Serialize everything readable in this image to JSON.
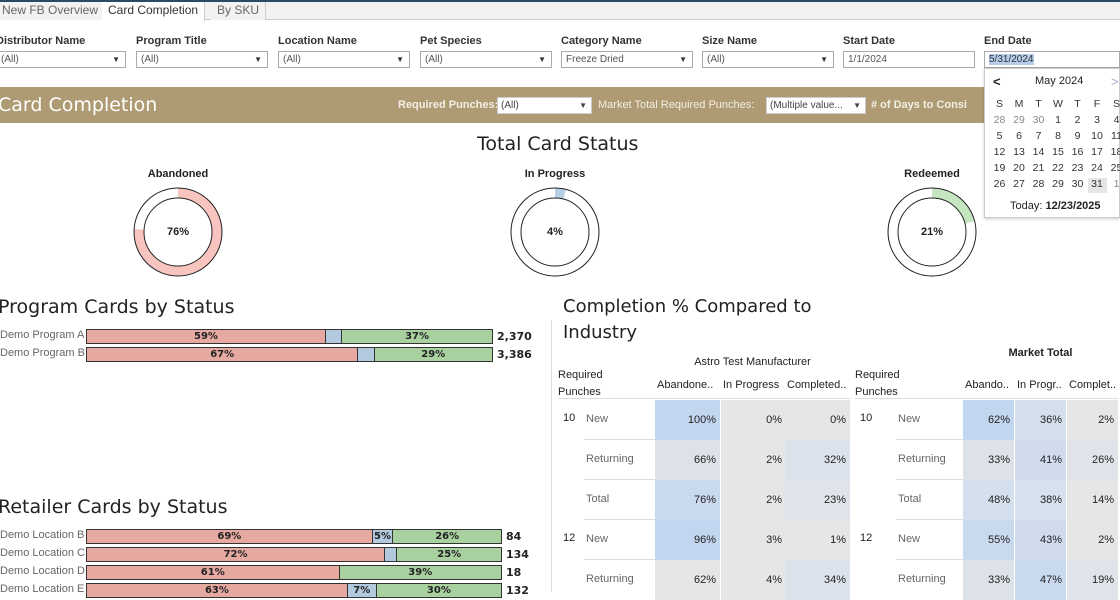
{
  "tabs": [
    {
      "label": "New FB Overview"
    },
    {
      "label": "Card Completion"
    },
    {
      "label": "By SKU"
    }
  ],
  "filters": [
    {
      "label": "Distributor Name",
      "value": "(All)"
    },
    {
      "label": "Program Title",
      "value": "(All)"
    },
    {
      "label": "Location Name",
      "value": "(All)"
    },
    {
      "label": "Pet Species",
      "value": "(All)"
    },
    {
      "label": "Category Name",
      "value": "Freeze Dried"
    },
    {
      "label": "Size Name",
      "value": "(All)"
    },
    {
      "label": "Start Date",
      "value": "1/1/2024"
    },
    {
      "label": "End Date",
      "value": "5/31/2024"
    }
  ],
  "banner": {
    "title": "Card Completion",
    "required_punches_label": "Required Punches:",
    "required_punches_value": "(All)",
    "market_label": "Market Total Required Punches:",
    "market_value": "(Multiple value...",
    "days_label": "# of Days to Consi"
  },
  "calendar": {
    "month": "May 2024",
    "prev": "<",
    "next": ">",
    "weekdays": [
      "S",
      "M",
      "T",
      "W",
      "T",
      "F",
      "S"
    ],
    "weeks": [
      [
        "28",
        "29",
        "30",
        "1",
        "2",
        "3",
        "4"
      ],
      [
        "5",
        "6",
        "7",
        "8",
        "9",
        "10",
        "11"
      ],
      [
        "12",
        "13",
        "14",
        "15",
        "16",
        "17",
        "18"
      ],
      [
        "19",
        "20",
        "21",
        "22",
        "23",
        "24",
        "25"
      ],
      [
        "26",
        "27",
        "28",
        "29",
        "30",
        "31",
        "1"
      ]
    ],
    "today_label": "Today:",
    "today_value": "12/23/2025"
  },
  "total_status": {
    "title": "Total Card Status",
    "donuts": [
      {
        "label": "Abandoned",
        "value": "76%",
        "fraction": 0.76,
        "color": "#f7c4c0"
      },
      {
        "label": "In Progress",
        "value": "4%",
        "fraction": 0.04,
        "color": "#b9cfe3"
      },
      {
        "label": "Redeemed",
        "value": "21%",
        "fraction": 0.21,
        "color": "#c4e5c0"
      }
    ]
  },
  "program_cards": {
    "title": "Program Cards by Status",
    "rows": [
      {
        "name": "Demo Program A",
        "abandoned": 59,
        "in_progress": 4,
        "completed": 37,
        "a_label": "59%",
        "i_label": "",
        "c_label": "37%",
        "total": "2,370"
      },
      {
        "name": "Demo Program B",
        "abandoned": 67,
        "in_progress": 4,
        "completed": 29,
        "a_label": "67%",
        "i_label": "",
        "c_label": "29%",
        "total": "3,386"
      }
    ]
  },
  "retailer_cards": {
    "title": "Retailer Cards by Status",
    "rows": [
      {
        "name": "Demo Location B",
        "abandoned": 69,
        "in_progress": 5,
        "completed": 26,
        "a_label": "69%",
        "i_label": "5%",
        "c_label": "26%",
        "total": "84"
      },
      {
        "name": "Demo Location C",
        "abandoned": 72,
        "in_progress": 3,
        "completed": 25,
        "a_label": "72%",
        "i_label": "",
        "c_label": "25%",
        "total": "134"
      },
      {
        "name": "Demo Location D",
        "abandoned": 61,
        "in_progress": 0,
        "completed": 39,
        "a_label": "61%",
        "i_label": "",
        "c_label": "39%",
        "total": "18"
      },
      {
        "name": "Demo Location E",
        "abandoned": 63,
        "in_progress": 7,
        "completed": 30,
        "a_label": "63%",
        "i_label": "7%",
        "c_label": "30%",
        "total": "132"
      }
    ]
  },
  "completion": {
    "title_line1": "Completion % Compared to",
    "title_line2": "Industry",
    "left": {
      "header": "Astro Test Manufacturer",
      "row_header": "Required Punches",
      "cols": [
        "Abandone..",
        "In Progress",
        "Completed.."
      ],
      "rows": [
        {
          "punches": "10",
          "type": "New",
          "vals": [
            "100%",
            "0%",
            "0%"
          ]
        },
        {
          "punches": "",
          "type": "Returning",
          "vals": [
            "66%",
            "2%",
            "32%"
          ]
        },
        {
          "punches": "",
          "type": "Total",
          "vals": [
            "76%",
            "2%",
            "23%"
          ]
        },
        {
          "punches": "12",
          "type": "New",
          "vals": [
            "96%",
            "3%",
            "1%"
          ]
        },
        {
          "punches": "",
          "type": "Returning",
          "vals": [
            "62%",
            "4%",
            "34%"
          ]
        }
      ]
    },
    "right": {
      "header": "Market Total",
      "row_header": "Required Punches",
      "cols": [
        "Abando..",
        "In Progr..",
        "Complet.."
      ],
      "rows": [
        {
          "punches": "10",
          "type": "New",
          "vals": [
            "62%",
            "36%",
            "2%"
          ]
        },
        {
          "punches": "",
          "type": "Returning",
          "vals": [
            "33%",
            "41%",
            "26%"
          ]
        },
        {
          "punches": "",
          "type": "Total",
          "vals": [
            "48%",
            "38%",
            "14%"
          ]
        },
        {
          "punches": "12",
          "type": "New",
          "vals": [
            "55%",
            "43%",
            "2%"
          ]
        },
        {
          "punches": "",
          "type": "Returning",
          "vals": [
            "33%",
            "47%",
            "19%"
          ]
        }
      ]
    }
  }
}
